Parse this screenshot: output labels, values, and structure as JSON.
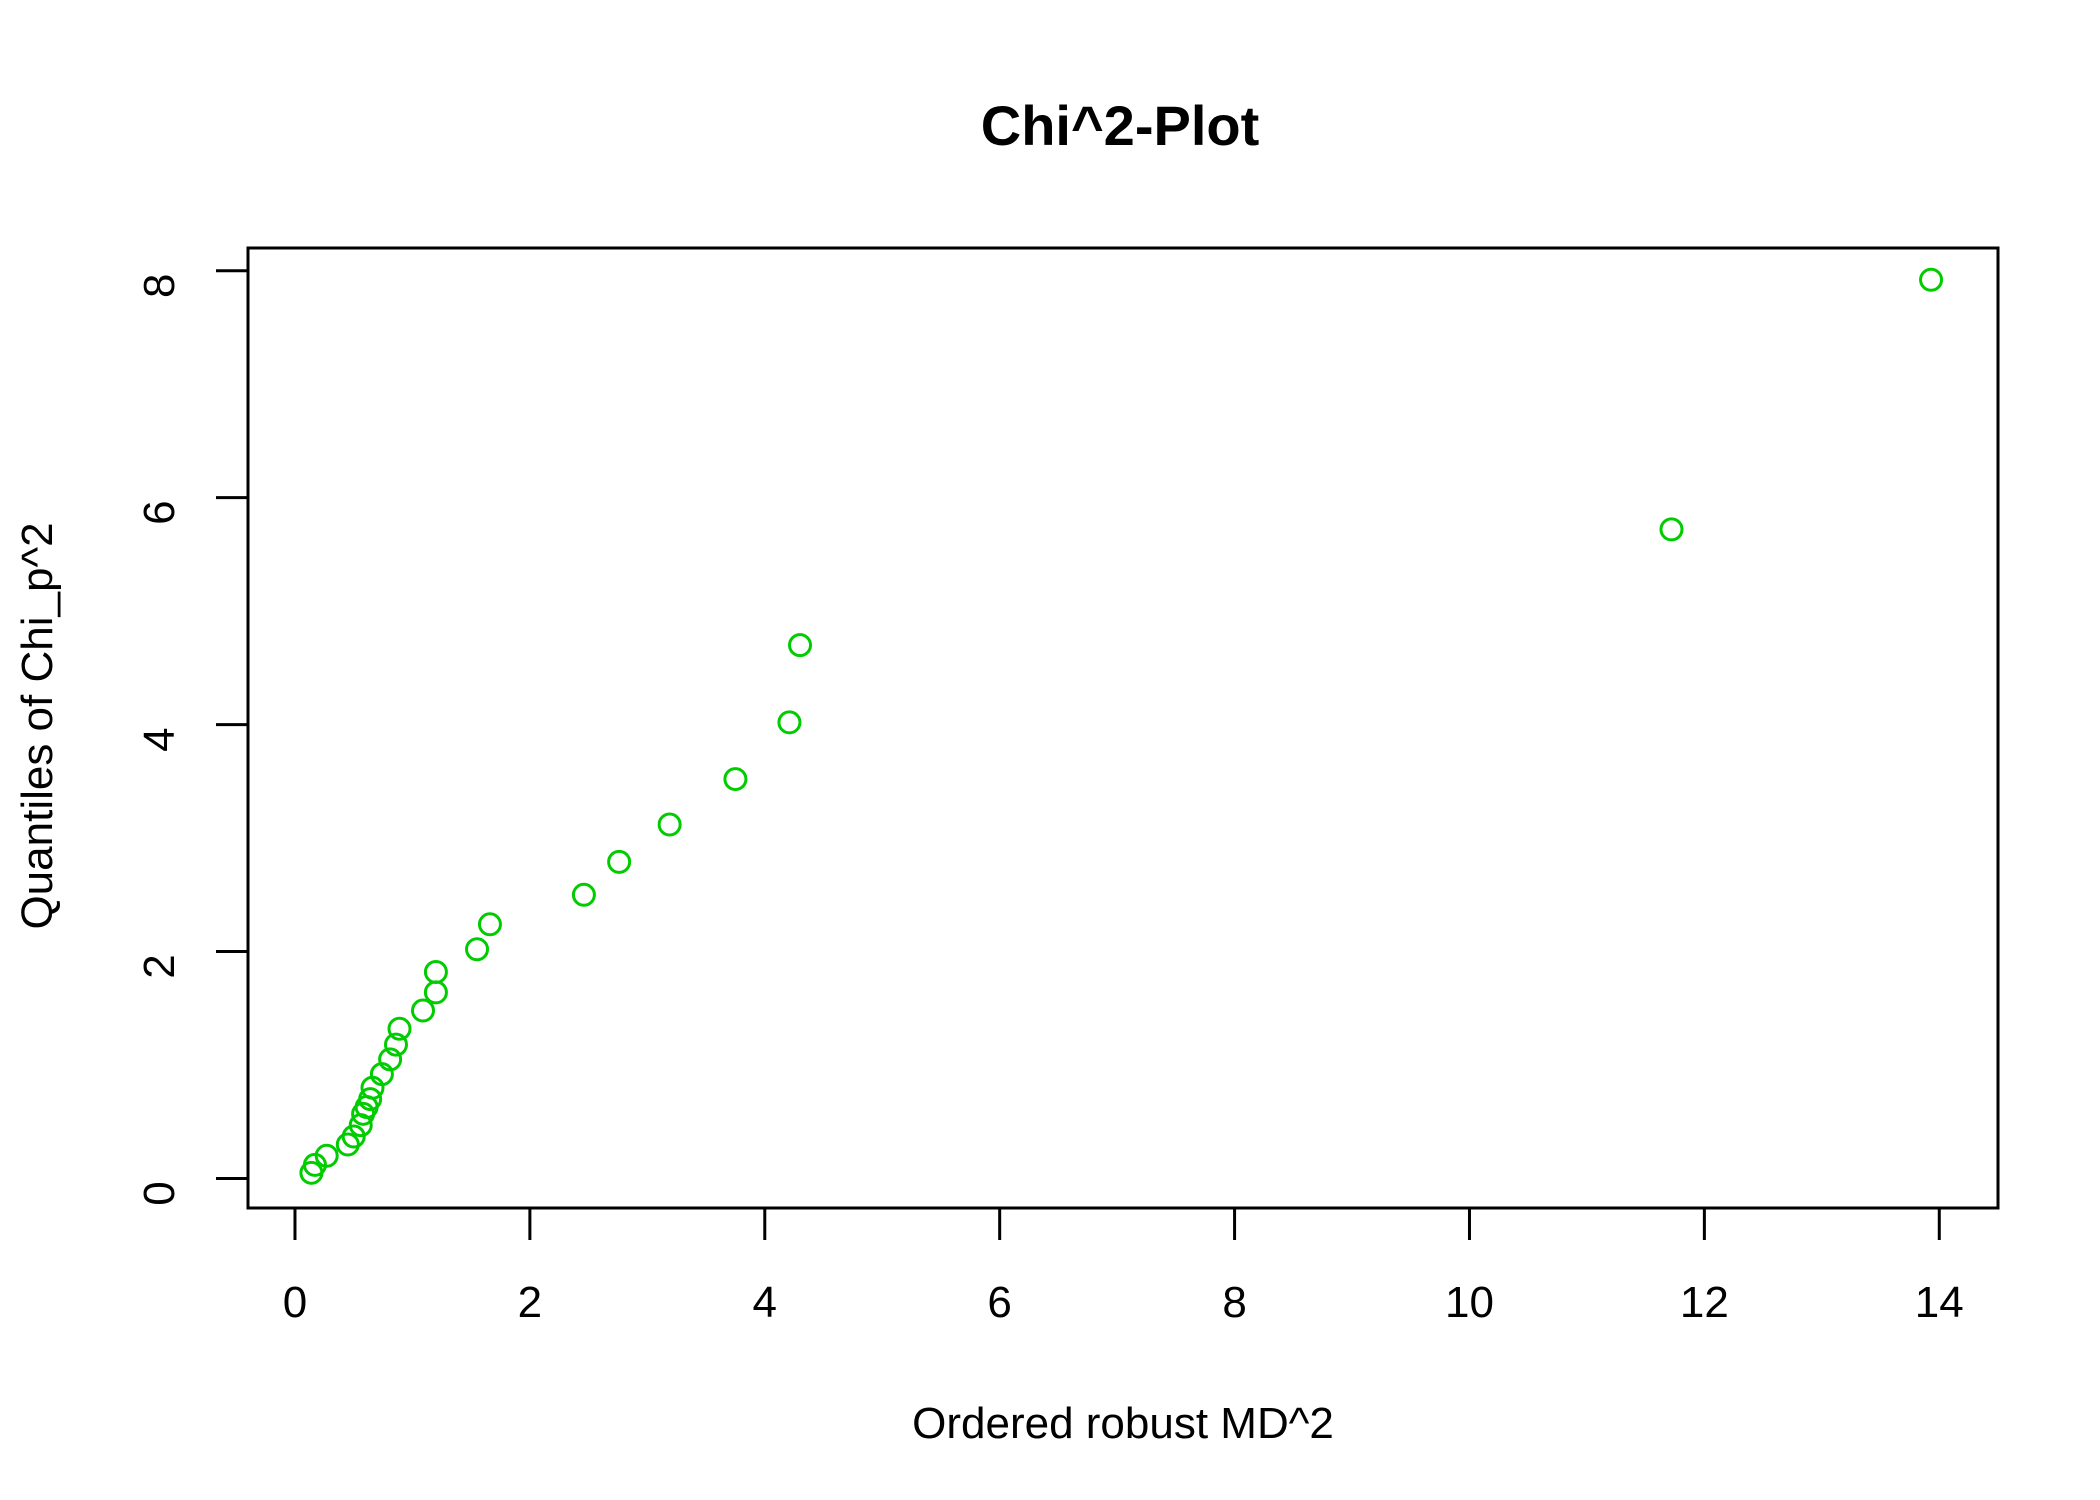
{
  "chart_data": {
    "type": "scatter",
    "title": "Chi^2-Plot",
    "xlabel": "Ordered robust MD^2",
    "ylabel": "Quantiles of Chi_p^2",
    "xlim": [
      -0.4,
      14.5
    ],
    "ylim": [
      -0.26,
      8.2
    ],
    "xticks": [
      0,
      2,
      4,
      6,
      8,
      10,
      12,
      14
    ],
    "yticks": [
      0,
      2,
      4,
      6,
      8
    ],
    "grid": false,
    "point_color": "#00CC00",
    "point_shape": "open-circle",
    "series": [
      {
        "x": [
          0.14,
          0.17,
          0.27,
          0.45,
          0.5,
          0.56,
          0.58,
          0.61,
          0.64,
          0.66,
          0.74,
          0.81,
          0.86,
          0.89,
          1.09,
          1.2,
          1.2,
          1.55,
          1.66,
          2.46,
          2.76,
          3.19,
          3.75,
          4.21,
          4.3,
          11.72,
          13.93
        ],
        "y": [
          0.05,
          0.12,
          0.2,
          0.3,
          0.37,
          0.47,
          0.57,
          0.63,
          0.7,
          0.8,
          0.92,
          1.05,
          1.18,
          1.32,
          1.48,
          1.64,
          1.82,
          2.02,
          2.24,
          2.5,
          2.79,
          3.12,
          3.52,
          4.02,
          4.7,
          5.72,
          7.92
        ]
      }
    ]
  }
}
